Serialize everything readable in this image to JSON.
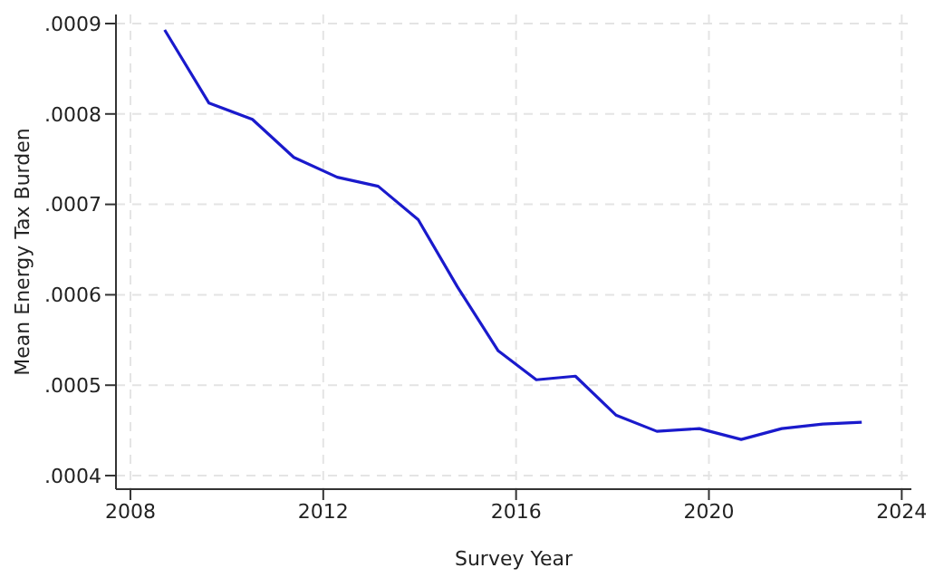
{
  "chart_data": {
    "type": "line",
    "xlabel": "Survey Year",
    "ylabel": "Mean Energy Tax Burden",
    "x": [
      2008.71,
      2009.63,
      2010.53,
      2011.39,
      2012.29,
      2013.14,
      2013.97,
      2014.78,
      2015.63,
      2016.42,
      2017.23,
      2018.07,
      2018.92,
      2019.8,
      2020.67,
      2021.51,
      2022.36,
      2023.17
    ],
    "series": [
      {
        "color": "#1a1acc",
        "values": [
          0.000893,
          0.000812,
          0.000794,
          0.000752,
          0.00073,
          0.00072,
          0.000683,
          0.000609,
          0.000538,
          0.000506,
          0.00051,
          0.000467,
          0.000449,
          0.000452,
          0.00044,
          0.000452,
          0.000457,
          0.000459
        ]
      }
    ],
    "xlim": [
      2007.7,
      2024.2
    ],
    "xticks": [
      2008,
      2012,
      2016,
      2020,
      2024
    ],
    "ylim": [
      0.000385,
      0.00091
    ],
    "yticks": [
      {
        "value": 0.0004,
        "label": ".0004"
      },
      {
        "value": 0.0005,
        "label": ".0005"
      },
      {
        "value": 0.0006,
        "label": ".0006"
      },
      {
        "value": 0.0007,
        "label": ".0007"
      },
      {
        "value": 0.0008,
        "label": ".0008"
      },
      {
        "value": 0.0009,
        "label": ".0009"
      }
    ],
    "grid": true,
    "marker": "none",
    "line_style": "solid"
  }
}
